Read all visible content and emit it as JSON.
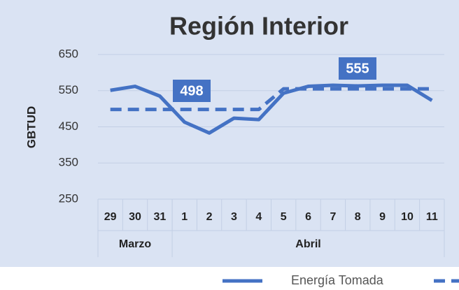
{
  "chart_data": {
    "type": "line",
    "title": "Región Interior",
    "y_label": "GBTUD",
    "category_groups": [
      {
        "label": "Marzo",
        "categories": [
          "29",
          "30",
          "31"
        ]
      },
      {
        "label": "Abril",
        "categories": [
          "1",
          "2",
          "3",
          "4",
          "5",
          "6",
          "7",
          "8",
          "9",
          "10",
          "11"
        ]
      }
    ],
    "series": [
      {
        "name": "Energía Tomada",
        "color": "#4472c4",
        "dashed": false,
        "values": [
          551,
          562,
          535,
          463,
          433,
          474,
          470,
          543,
          562,
          565,
          563,
          565,
          565,
          523
        ]
      },
      {
        "color": "#4472c4",
        "dashed": true,
        "values": [
          498,
          498,
          498,
          498,
          498,
          498,
          498,
          555,
          555,
          555,
          555,
          555,
          555,
          555
        ]
      }
    ],
    "ylim": [
      250,
      650
    ],
    "yticks": [
      250,
      350,
      450,
      550,
      650
    ],
    "grid": true
  }
}
